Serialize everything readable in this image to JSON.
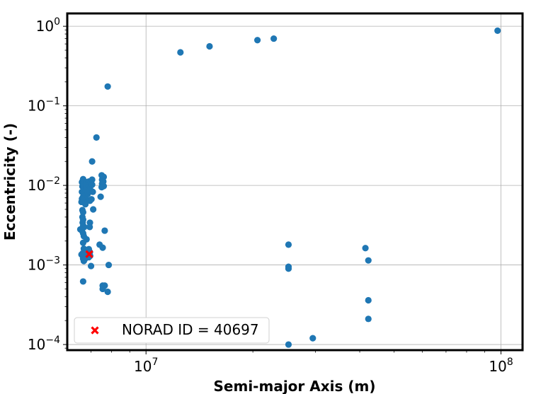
{
  "chart_data": {
    "type": "scatter",
    "xlabel": "Semi-major Axis (m)",
    "ylabel": "Eccentricity (-)",
    "xscale": "log",
    "yscale": "log",
    "xlim": [
      6000000,
      115000000
    ],
    "ylim": [
      8.5e-05,
      1.45
    ],
    "grid": true,
    "legend_position": "lower-left",
    "x_ticks": [
      {
        "value": 10000000,
        "base": "10",
        "exp": "7"
      },
      {
        "value": 100000000,
        "base": "10",
        "exp": "8"
      }
    ],
    "y_ticks": [
      {
        "value": 1,
        "base": "10",
        "exp": "0"
      },
      {
        "value": 0.1,
        "base": "10",
        "exp": "−1"
      },
      {
        "value": 0.01,
        "base": "10",
        "exp": "−2"
      },
      {
        "value": 0.001,
        "base": "10",
        "exp": "−3"
      },
      {
        "value": 0.0001,
        "base": "10",
        "exp": "−4"
      }
    ],
    "series": [
      {
        "color": "#1f77b4",
        "marker": "circle",
        "points": [
          [
            12500000,
            0.47
          ],
          [
            15100000,
            0.56
          ],
          [
            20600000,
            0.67
          ],
          [
            22900000,
            0.7
          ],
          [
            97800000,
            0.88
          ],
          [
            7800000,
            0.175
          ],
          [
            7250000,
            0.04
          ],
          [
            7050000,
            0.02
          ],
          [
            6600000,
            0.011
          ],
          [
            6650000,
            0.012
          ],
          [
            6700000,
            0.0105
          ],
          [
            6800000,
            0.011
          ],
          [
            6900000,
            0.0112
          ],
          [
            7050000,
            0.0118
          ],
          [
            6620000,
            0.0097
          ],
          [
            6700000,
            0.0093
          ],
          [
            6780000,
            0.0098
          ],
          [
            6880000,
            0.0095
          ],
          [
            6950000,
            0.0092
          ],
          [
            7050000,
            0.0102
          ],
          [
            6600000,
            0.0083
          ],
          [
            6680000,
            0.0082
          ],
          [
            6760000,
            0.0086
          ],
          [
            6850000,
            0.0078
          ],
          [
            6930000,
            0.0085
          ],
          [
            7080000,
            0.0083
          ],
          [
            6650000,
            0.0072
          ],
          [
            6720000,
            0.0068
          ],
          [
            6820000,
            0.0066
          ],
          [
            6950000,
            0.0064
          ],
          [
            6580000,
            0.0062
          ],
          [
            6600000,
            0.0068
          ],
          [
            6750000,
            0.0058
          ],
          [
            7020000,
            0.0067
          ],
          [
            7500000,
            0.0134
          ],
          [
            7600000,
            0.0128
          ],
          [
            7520000,
            0.0118
          ],
          [
            7580000,
            0.0112
          ],
          [
            7520000,
            0.0105
          ],
          [
            7600000,
            0.0098
          ],
          [
            7500000,
            0.0095
          ],
          [
            7450000,
            0.0072
          ],
          [
            6620000,
            0.0049
          ],
          [
            6650000,
            0.0046
          ],
          [
            6620000,
            0.004
          ],
          [
            6650000,
            0.0037
          ],
          [
            6630000,
            0.0034
          ],
          [
            6650000,
            0.0031
          ],
          [
            6700000,
            0.003
          ],
          [
            7100000,
            0.005
          ],
          [
            6950000,
            0.0034
          ],
          [
            6940000,
            0.003
          ],
          [
            6530000,
            0.0028
          ],
          [
            6600000,
            0.0027
          ],
          [
            6650000,
            0.0025
          ],
          [
            6680000,
            0.0023
          ],
          [
            7650000,
            0.0027
          ],
          [
            6800000,
            0.0021
          ],
          [
            6650000,
            0.0019
          ],
          [
            6680000,
            0.0016
          ],
          [
            6630000,
            0.0014
          ],
          [
            6580000,
            0.00135
          ],
          [
            6720000,
            0.00135
          ],
          [
            6900000,
            0.00158
          ],
          [
            6950000,
            0.00145
          ],
          [
            6960000,
            0.0013
          ],
          [
            6900000,
            0.00125
          ],
          [
            6650000,
            0.0012
          ],
          [
            6680000,
            0.00112
          ],
          [
            6720000,
            0.00118
          ],
          [
            7400000,
            0.0018
          ],
          [
            7550000,
            0.00165
          ],
          [
            7000000,
            0.00097
          ],
          [
            7850000,
            0.001
          ],
          [
            6650000,
            0.00062
          ],
          [
            7550000,
            0.00055
          ],
          [
            7650000,
            0.00055
          ],
          [
            7550000,
            0.0005
          ],
          [
            7800000,
            0.00046
          ],
          [
            25200000,
            0.0018
          ],
          [
            25200000,
            0.00095
          ],
          [
            25200000,
            0.0009
          ],
          [
            41500000,
            0.00163
          ],
          [
            42300000,
            0.00114
          ],
          [
            42300000,
            0.00036
          ],
          [
            42300000,
            0.00021
          ],
          [
            25200000,
            0.0001
          ],
          [
            29500000,
            0.00012
          ]
        ]
      },
      {
        "name": "NORAD ID = 40697",
        "color": "#ff0000",
        "marker": "x",
        "points": [
          [
            6920000,
            0.00137
          ]
        ]
      }
    ]
  }
}
